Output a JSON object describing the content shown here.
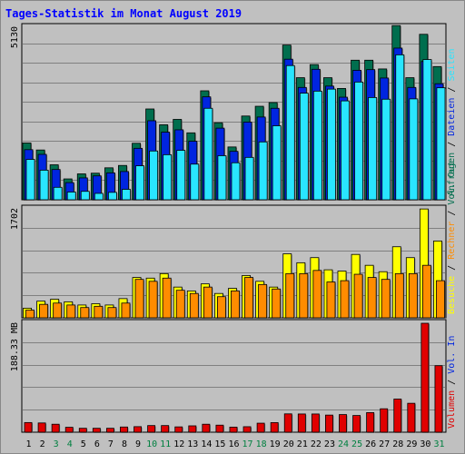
{
  "title": "Tages-Statistik im Monat August 2019",
  "colors": {
    "anfragen": "#006e4e",
    "dateien": "#0025e0",
    "seiten": "#29e5ff",
    "besuche": "#ffff00",
    "rechner": "#ff8c00",
    "volumen": "#e00000",
    "weekend_label": "#008040",
    "background": "#c0c0c0"
  },
  "chart_data": [
    {
      "type": "bar",
      "panel": "top",
      "ymax_label": "5130",
      "ymax": 5130,
      "legend": [
        "Anfragen",
        "Dateien",
        "Seiten"
      ],
      "legend_seps": [
        "/",
        "/"
      ],
      "categories": [
        "1",
        "2",
        "3",
        "4",
        "5",
        "6",
        "7",
        "8",
        "9",
        "10",
        "11",
        "12",
        "13",
        "14",
        "15",
        "16",
        "17",
        "18",
        "19",
        "20",
        "21",
        "22",
        "23",
        "24",
        "25",
        "26",
        "27",
        "28",
        "29",
        "30",
        "31"
      ],
      "weekend_days": [
        "3",
        "4",
        "10",
        "11",
        "17",
        "18",
        "24",
        "25",
        "31"
      ],
      "series": [
        {
          "name": "Anfragen",
          "values": [
            1690,
            1480,
            1040,
            620,
            770,
            790,
            950,
            1020,
            1680,
            2700,
            2230,
            2390,
            1990,
            3240,
            2290,
            1570,
            2490,
            2780,
            2890,
            4600,
            3630,
            4020,
            3630,
            3310,
            4150,
            4150,
            3890,
            5180,
            3630,
            4920,
            3960
          ]
        },
        {
          "name": "Dateien",
          "values": [
            1490,
            1350,
            900,
            510,
            650,
            710,
            800,
            840,
            1530,
            2350,
            2010,
            2080,
            1740,
            3060,
            2130,
            1440,
            2310,
            2460,
            2720,
            4180,
            3340,
            3880,
            3380,
            3050,
            3850,
            3870,
            3620,
            4510,
            3340,
            4110,
            3450
          ]
        },
        {
          "name": "Seiten",
          "values": [
            1200,
            880,
            370,
            230,
            250,
            190,
            220,
            310,
            1010,
            1450,
            1340,
            1470,
            1060,
            2720,
            1310,
            1100,
            1260,
            1720,
            2200,
            3990,
            3170,
            3230,
            3290,
            2940,
            3500,
            3040,
            2990,
            4310,
            3000,
            4170,
            3330
          ]
        }
      ]
    },
    {
      "type": "bar",
      "panel": "middle",
      "ymax_label": "1702",
      "ymax": 1702,
      "legend": [
        "Besuche",
        "Rechner",
        "Vol. Out"
      ],
      "legend_seps": [
        "/",
        "/"
      ],
      "series": [
        {
          "name": "Besuche",
          "values": [
            150,
            260,
            290,
            250,
            200,
            220,
            200,
            300,
            630,
            620,
            690,
            480,
            420,
            530,
            380,
            460,
            660,
            570,
            480,
            1000,
            860,
            940,
            750,
            730,
            990,
            820,
            720,
            1110,
            940,
            1700,
            1200
          ]
        },
        {
          "name": "Rechner",
          "values": [
            120,
            210,
            230,
            200,
            160,
            180,
            160,
            230,
            600,
            570,
            620,
            430,
            380,
            480,
            330,
            420,
            630,
            520,
            450,
            690,
            690,
            740,
            560,
            580,
            680,
            630,
            600,
            690,
            690,
            820,
            580
          ]
        }
      ]
    },
    {
      "type": "bar",
      "panel": "bottom",
      "ymax_label": "188.33 MB",
      "ymax": 188.33,
      "legend": [
        "Volumen",
        "Vol. In"
      ],
      "legend_seps": [
        "/",
        "/"
      ],
      "series": [
        {
          "name": "Volumen",
          "values": [
            16.7,
            16.0,
            13.8,
            8.5,
            6.8,
            6.8,
            6.8,
            9.0,
            9.6,
            11.5,
            11.5,
            9.2,
            11.0,
            13.8,
            12.2,
            8.8,
            9.5,
            15.6,
            16.6,
            31.7,
            31.5,
            31.5,
            29.6,
            30.5,
            28.9,
            33.9,
            40.5,
            57.3,
            50.0,
            188.3,
            115.0
          ]
        }
      ]
    }
  ]
}
